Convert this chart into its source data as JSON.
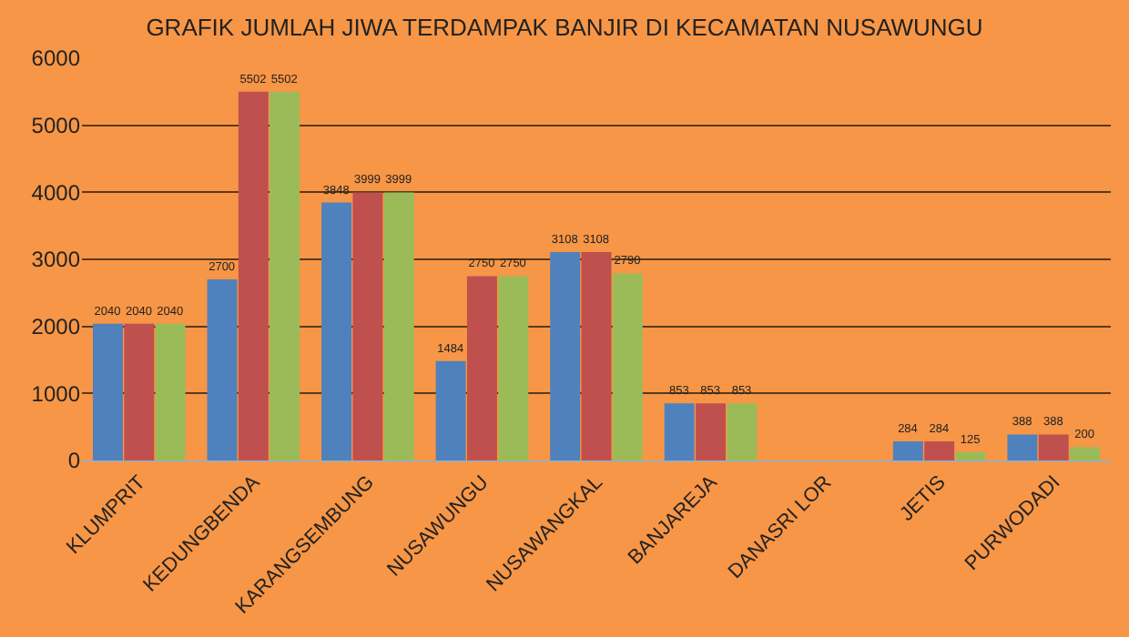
{
  "chart_data": {
    "type": "bar",
    "title": "GRAFIK JUMLAH JIWA TERDAMPAK BANJIR DI KECAMATAN NUSAWUNGU",
    "categories": [
      "KLUMPRIT",
      "KEDUNGBENDA",
      "KARANGSEMBUNG",
      "NUSAWUNGU",
      "NUSAWANGKAL",
      "BANJAREJA",
      "DANASRI LOR",
      "JETIS",
      "PURWODADI"
    ],
    "series": [
      {
        "color": "#4f81bd",
        "values": [
          2040,
          2700,
          3848,
          1484,
          3108,
          853,
          null,
          284,
          388
        ]
      },
      {
        "color": "#c0504d",
        "values": [
          2040,
          5502,
          3999,
          2750,
          3108,
          853,
          null,
          284,
          388
        ]
      },
      {
        "color": "#9bbb59",
        "values": [
          2040,
          5502,
          3999,
          2750,
          2790,
          853,
          null,
          125,
          200
        ]
      }
    ],
    "ylim": [
      0,
      6000
    ],
    "yticks": [
      0,
      1000,
      2000,
      3000,
      4000,
      5000,
      6000
    ],
    "grid": "y",
    "data_labels": true
  }
}
